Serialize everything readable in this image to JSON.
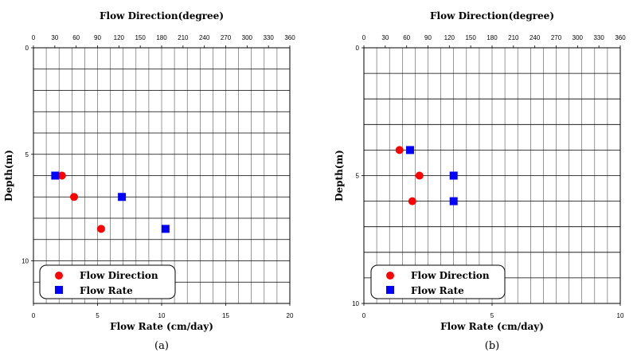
{
  "chart_data": [
    {
      "type": "scatter",
      "panel_label": "(a)",
      "title": "Flow Direction(degree)",
      "xlabel": "Flow Rate (cm/day)",
      "ylabel": "Depth(m)",
      "top_axis": {
        "min": 0,
        "max": 360,
        "step": 30,
        "tick_labels": [
          "0",
          "30",
          "60",
          "90",
          "120",
          "150",
          "180",
          "210",
          "240",
          "270",
          "300",
          "330",
          "360"
        ]
      },
      "bottom_axis": {
        "min": 0,
        "max": 20,
        "minor_step": 1,
        "tick_labels": [
          "0",
          "5",
          "10",
          "15",
          "20"
        ],
        "tick_values": [
          0,
          5,
          10,
          15,
          20
        ]
      },
      "y_axis": {
        "min": 0,
        "max": 12,
        "inverted": true,
        "tick_labels": [
          "0",
          "5",
          "10"
        ],
        "tick_values": [
          0,
          5,
          10
        ]
      },
      "hgrid": [
        1,
        2,
        3,
        4,
        5,
        6,
        7,
        8,
        9,
        10,
        11,
        12
      ],
      "legend": {
        "position": "bottom-left",
        "entries": [
          "Flow Direction",
          "Flow Rate"
        ]
      },
      "series": [
        {
          "name": "Flow Direction",
          "axis": "top",
          "color": "#ff0000",
          "marker": "circle",
          "points": [
            {
              "x": 40,
              "y": 6
            },
            {
              "x": 57,
              "y": 7
            },
            {
              "x": 95,
              "y": 8.5
            }
          ]
        },
        {
          "name": "Flow Rate",
          "axis": "bottom",
          "color": "#0000ff",
          "marker": "square",
          "points": [
            {
              "x": 1.7,
              "y": 6
            },
            {
              "x": 6.9,
              "y": 7
            },
            {
              "x": 10.3,
              "y": 8.5
            }
          ]
        }
      ]
    },
    {
      "type": "scatter",
      "panel_label": "(b)",
      "title": "Flow Direction(degree)",
      "xlabel": "Flow Rate (cm/day)",
      "ylabel": "Depth(m)",
      "top_axis": {
        "min": 0,
        "max": 360,
        "step": 30,
        "tick_labels": [
          "0",
          "30",
          "60",
          "90",
          "120",
          "150",
          "180",
          "210",
          "240",
          "270",
          "300",
          "330",
          "360"
        ]
      },
      "bottom_axis": {
        "min": 0,
        "max": 10,
        "minor_step": 0.5,
        "tick_labels": [
          "0",
          "5",
          "10"
        ],
        "tick_values": [
          0,
          5,
          10
        ]
      },
      "y_axis": {
        "min": 0,
        "max": 10,
        "inverted": true,
        "tick_labels": [
          "0",
          "5",
          "10"
        ],
        "tick_values": [
          0,
          5,
          10
        ]
      },
      "hgrid": [
        1,
        2,
        3,
        4,
        5,
        6,
        7,
        8,
        9,
        10
      ],
      "legend": {
        "position": "bottom-left",
        "entries": [
          "Flow Direction",
          "Flow Rate"
        ]
      },
      "series": [
        {
          "name": "Flow Direction",
          "axis": "top",
          "color": "#ff0000",
          "marker": "circle",
          "points": [
            {
              "x": 50,
              "y": 4
            },
            {
              "x": 78,
              "y": 5
            },
            {
              "x": 68,
              "y": 6
            }
          ]
        },
        {
          "name": "Flow Rate",
          "axis": "bottom",
          "color": "#0000ff",
          "marker": "square",
          "points": [
            {
              "x": 1.8,
              "y": 4
            },
            {
              "x": 3.5,
              "y": 5
            },
            {
              "x": 3.5,
              "y": 6
            }
          ]
        }
      ]
    }
  ]
}
